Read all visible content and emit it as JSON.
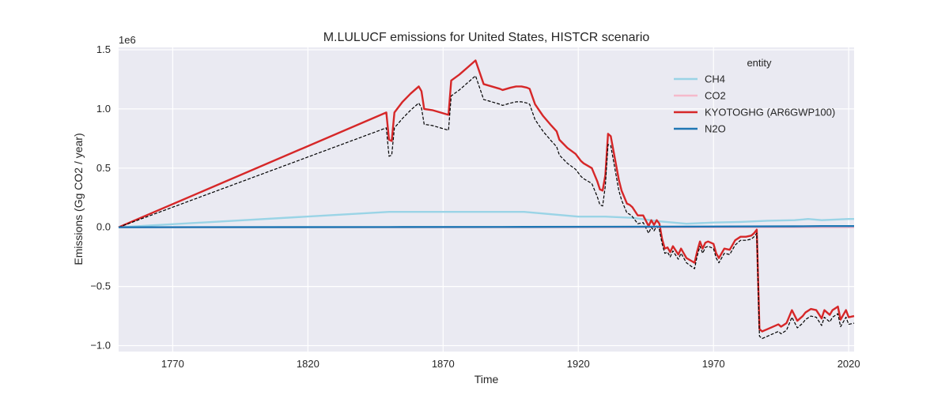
{
  "chart_data": {
    "type": "line",
    "title": "M.LULUCF emissions for United States, HISTCR scenario",
    "xlabel": "Time",
    "ylabel": "Emissions (Gg CO2 / year)",
    "y_scale_note": "1e6",
    "xlim": [
      1750,
      2022
    ],
    "ylim": [
      -1050000,
      1520000
    ],
    "x_ticks": [
      1770,
      1820,
      1870,
      1920,
      1970,
      2020
    ],
    "y_ticks": [
      -1000000,
      -500000,
      0,
      500000,
      1000000,
      1500000
    ],
    "y_tick_labels": [
      "−1.0",
      "−0.5",
      "0.0",
      "0.5",
      "1.0",
      "1.5"
    ],
    "grid": true,
    "legend": {
      "title": "entity",
      "placement": "top-right"
    },
    "series": [
      {
        "name": "CH4",
        "color": "#9ad4e6",
        "style": "solid",
        "x": [
          1750,
          1850,
          1900,
          1920,
          1930,
          1940,
          1950,
          1960,
          1970,
          1980,
          1990,
          2000,
          2005,
          2010,
          2015,
          2020,
          2022
        ],
        "y": [
          0,
          130000,
          130000,
          90000,
          90000,
          80000,
          50000,
          30000,
          40000,
          45000,
          55000,
          60000,
          70000,
          60000,
          65000,
          70000,
          70000
        ]
      },
      {
        "name": "CO2",
        "color": "#f5b9cb",
        "style": "solid",
        "x": [
          1750,
          1850,
          1900,
          1950,
          2000,
          2022
        ],
        "y": [
          0,
          0,
          0,
          0,
          0,
          0
        ]
      },
      {
        "name": "KYOTOGHG (AR6GWP100)",
        "color": "#d62728",
        "style": "solid",
        "x": [
          1750,
          1849,
          1850,
          1851,
          1852,
          1855,
          1858,
          1861,
          1862,
          1863,
          1866,
          1869,
          1872,
          1873,
          1876,
          1879,
          1881,
          1882,
          1885,
          1888,
          1891,
          1892,
          1895,
          1897,
          1899,
          1901,
          1902,
          1904,
          1907,
          1910,
          1912,
          1913,
          1916,
          1919,
          1921,
          1922,
          1925,
          1927,
          1928,
          1929,
          1930,
          1931,
          1932,
          1935,
          1936,
          1938,
          1939,
          1940,
          1942,
          1944,
          1946,
          1947,
          1948,
          1949,
          1950,
          1951,
          1952,
          1953,
          1954,
          1955,
          1957,
          1958,
          1959,
          1960,
          1963,
          1964,
          1965,
          1966,
          1967,
          1968,
          1970,
          1971,
          1972,
          1974,
          1976,
          1978,
          1980,
          1982,
          1984,
          1985,
          1986,
          1987,
          1988,
          1990,
          1992,
          1994,
          1995,
          1997,
          1999,
          2001,
          2003,
          2004,
          2006,
          2008,
          2010,
          2011,
          2013,
          2014,
          2016,
          2017,
          2019,
          2020,
          2022
        ],
        "y": [
          0,
          970000,
          740000,
          730000,
          970000,
          1060000,
          1130000,
          1190000,
          1150000,
          1000000,
          990000,
          970000,
          950000,
          1240000,
          1290000,
          1350000,
          1390000,
          1410000,
          1210000,
          1190000,
          1170000,
          1160000,
          1180000,
          1190000,
          1190000,
          1180000,
          1170000,
          1040000,
          940000,
          860000,
          810000,
          740000,
          670000,
          620000,
          560000,
          540000,
          500000,
          390000,
          320000,
          310000,
          440000,
          790000,
          770000,
          400000,
          310000,
          200000,
          190000,
          170000,
          100000,
          100000,
          10000,
          60000,
          20000,
          60000,
          30000,
          -100000,
          -180000,
          -170000,
          -210000,
          -160000,
          -230000,
          -180000,
          -220000,
          -260000,
          -300000,
          -200000,
          -120000,
          -180000,
          -130000,
          -120000,
          -140000,
          -220000,
          -260000,
          -180000,
          -190000,
          -110000,
          -80000,
          -80000,
          -70000,
          -50000,
          -20000,
          -860000,
          -880000,
          -860000,
          -840000,
          -820000,
          -840000,
          -810000,
          -700000,
          -790000,
          -750000,
          -720000,
          -690000,
          -700000,
          -770000,
          -700000,
          -740000,
          -700000,
          -670000,
          -780000,
          -700000,
          -760000,
          -750000
        ]
      },
      {
        "name": "N2O",
        "color": "#1f77b4",
        "style": "solid",
        "x": [
          1750,
          1850,
          1900,
          1950,
          2000,
          2010,
          2022
        ],
        "y": [
          0,
          2000,
          3000,
          5000,
          8000,
          10000,
          10000
        ]
      }
    ],
    "overlay": {
      "color": "#000000",
      "style": "dashed",
      "x": [
        1750,
        1849,
        1850,
        1851,
        1852,
        1855,
        1858,
        1861,
        1862,
        1863,
        1866,
        1869,
        1872,
        1873,
        1876,
        1879,
        1881,
        1882,
        1885,
        1888,
        1891,
        1892,
        1895,
        1897,
        1899,
        1901,
        1902,
        1904,
        1907,
        1910,
        1912,
        1913,
        1916,
        1919,
        1921,
        1922,
        1925,
        1927,
        1928,
        1929,
        1930,
        1931,
        1932,
        1935,
        1936,
        1938,
        1939,
        1940,
        1942,
        1944,
        1946,
        1947,
        1948,
        1949,
        1950,
        1951,
        1952,
        1953,
        1954,
        1955,
        1957,
        1958,
        1959,
        1960,
        1963,
        1964,
        1965,
        1966,
        1967,
        1968,
        1970,
        1971,
        1972,
        1974,
        1976,
        1978,
        1980,
        1982,
        1984,
        1985,
        1986,
        1987,
        1988,
        1990,
        1992,
        1994,
        1995,
        1997,
        1999,
        2001,
        2003,
        2004,
        2006,
        2008,
        2010,
        2011,
        2013,
        2014,
        2016,
        2017,
        2019,
        2020,
        2022
      ],
      "y": [
        0,
        840000,
        600000,
        610000,
        840000,
        920000,
        990000,
        1050000,
        1010000,
        870000,
        860000,
        840000,
        820000,
        1110000,
        1160000,
        1220000,
        1260000,
        1280000,
        1080000,
        1060000,
        1040000,
        1030000,
        1050000,
        1060000,
        1060000,
        1050000,
        1040000,
        910000,
        810000,
        730000,
        680000,
        610000,
        540000,
        490000,
        430000,
        410000,
        370000,
        260000,
        190000,
        180000,
        350000,
        700000,
        690000,
        310000,
        230000,
        120000,
        110000,
        90000,
        30000,
        40000,
        -50000,
        0,
        -30000,
        10000,
        -20000,
        -140000,
        -220000,
        -210000,
        -250000,
        -200000,
        -270000,
        -220000,
        -260000,
        -300000,
        -350000,
        -240000,
        -160000,
        -220000,
        -170000,
        -160000,
        -180000,
        -260000,
        -300000,
        -220000,
        -230000,
        -150000,
        -110000,
        -110000,
        -100000,
        -80000,
        -50000,
        -920000,
        -940000,
        -920000,
        -900000,
        -880000,
        -900000,
        -870000,
        -760000,
        -850000,
        -810000,
        -780000,
        -750000,
        -760000,
        -830000,
        -760000,
        -800000,
        -760000,
        -730000,
        -840000,
        -760000,
        -820000,
        -810000
      ]
    }
  }
}
